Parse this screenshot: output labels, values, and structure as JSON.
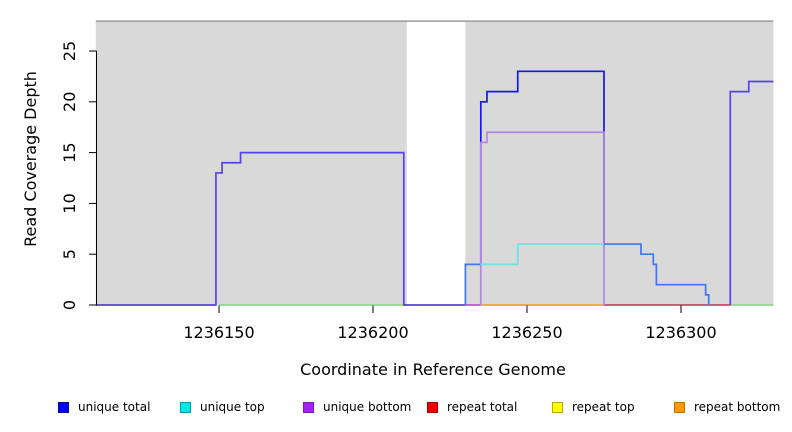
{
  "chart_data": {
    "type": "line",
    "subtype": "step-coverage",
    "title": "",
    "xlabel": "Coordinate in Reference Genome",
    "ylabel": "Read Coverage Depth",
    "xlim": [
      1236110,
      1236330
    ],
    "ylim": [
      0,
      28
    ],
    "x_ticks": [
      1236150,
      1236200,
      1236250,
      1236300
    ],
    "y_ticks": [
      0,
      5,
      10,
      15,
      20,
      25
    ],
    "grid": false,
    "legend_position": "bottom",
    "background": {
      "shaded_color": "#d9d9d9",
      "top_line_color": "#9a9a9a",
      "shaded_regions_x": [
        [
          1236110,
          1236211
        ],
        [
          1236230,
          1236330
        ]
      ]
    },
    "series": [
      {
        "name": "baseline-green-left",
        "color": "#90d890",
        "points": [
          [
            1236150,
            0
          ],
          [
            1236211,
            0
          ]
        ]
      },
      {
        "name": "baseline-green-right",
        "color": "#90d890",
        "points": [
          [
            1236316,
            0
          ],
          [
            1236330,
            0
          ]
        ]
      },
      {
        "name": "baseline-magenta",
        "color": "#c050cc",
        "points": [
          [
            1236230,
            0
          ],
          [
            1236235,
            0
          ]
        ]
      },
      {
        "name": "baseline-orange",
        "color": "#ffa01e",
        "points": [
          [
            1236235,
            0
          ],
          [
            1236275,
            0
          ]
        ]
      },
      {
        "name": "baseline-crimson",
        "color": "#cc4466",
        "points": [
          [
            1236275,
            0
          ],
          [
            1236316,
            0
          ]
        ]
      },
      {
        "name": "unique-total-left-block",
        "color": "#5743e3",
        "points": [
          [
            1236110,
            0
          ],
          [
            1236149,
            0
          ],
          [
            1236149,
            13
          ],
          [
            1236151,
            13
          ],
          [
            1236151,
            14
          ],
          [
            1236157,
            14
          ],
          [
            1236157,
            15
          ],
          [
            1236210,
            15
          ],
          [
            1236210,
            0
          ],
          [
            1236230,
            0
          ]
        ]
      },
      {
        "name": "unique-total-mid-rise",
        "color": "#3f78ea",
        "points": [
          [
            1236230,
            0
          ],
          [
            1236230,
            4
          ],
          [
            1236235,
            4
          ]
        ]
      },
      {
        "name": "unique-total-mid-block",
        "color": "#1616f2",
        "points": [
          [
            1236235,
            4
          ],
          [
            1236235,
            20
          ],
          [
            1236237,
            20
          ],
          [
            1236237,
            21
          ],
          [
            1236247,
            21
          ],
          [
            1236247,
            23
          ],
          [
            1236275,
            23
          ],
          [
            1236275,
            6
          ]
        ]
      },
      {
        "name": "unique-bottom-block",
        "color": "#b286e2",
        "points": [
          [
            1236235,
            0
          ],
          [
            1236235,
            16
          ],
          [
            1236237,
            16
          ],
          [
            1236237,
            17
          ],
          [
            1236275,
            17
          ],
          [
            1236275,
            0
          ]
        ]
      },
      {
        "name": "unique-top-line",
        "color": "#70e2e0",
        "points": [
          [
            1236235,
            4
          ],
          [
            1236247,
            4
          ],
          [
            1236247,
            6
          ],
          [
            1236275,
            6
          ]
        ]
      },
      {
        "name": "unique-total-descend",
        "color": "#3f78ea",
        "points": [
          [
            1236275,
            6
          ],
          [
            1236287,
            6
          ],
          [
            1236287,
            5
          ],
          [
            1236291,
            5
          ],
          [
            1236291,
            4
          ],
          [
            1236292,
            4
          ],
          [
            1236292,
            2
          ],
          [
            1236308,
            2
          ],
          [
            1236308,
            1
          ],
          [
            1236309,
            1
          ],
          [
            1236309,
            0
          ]
        ]
      },
      {
        "name": "unique-total-right-block",
        "color": "#5743e3",
        "points": [
          [
            1236316,
            0
          ],
          [
            1236316,
            21
          ],
          [
            1236322,
            21
          ],
          [
            1236322,
            22
          ],
          [
            1236330,
            22
          ]
        ]
      }
    ],
    "legend": [
      {
        "label": "unique total",
        "color": "#0000ee",
        "border": "#0000aa"
      },
      {
        "label": "unique top",
        "color": "#00e8e8",
        "border": "#00a0a0"
      },
      {
        "label": "unique bottom",
        "color": "#a021f0",
        "border": "#7a18b8"
      },
      {
        "label": "repeat total",
        "color": "#ee0000",
        "border": "#aa0000"
      },
      {
        "label": "repeat top",
        "color": "#ffff00",
        "border": "#b8a800"
      },
      {
        "label": "repeat bottom",
        "color": "#ff9900",
        "border": "#c07000"
      }
    ]
  }
}
